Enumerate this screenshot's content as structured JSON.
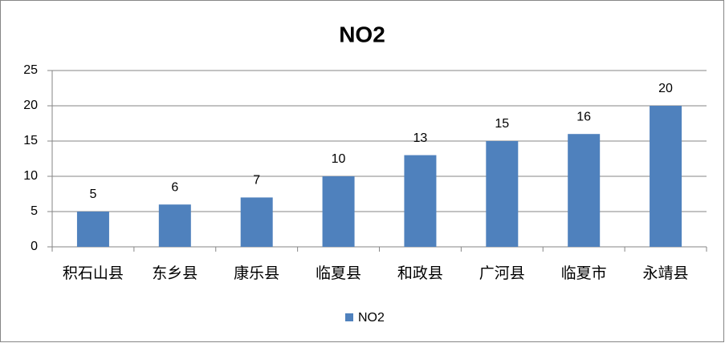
{
  "chart_data": {
    "type": "bar",
    "title": "NO2",
    "categories": [
      "积石山县",
      "东乡县",
      "康乐县",
      "临夏县",
      "和政县",
      "广河县",
      "临夏市",
      "永靖县"
    ],
    "series": [
      {
        "name": "NO2",
        "color": "#4f81bd",
        "values": [
          5,
          6,
          7,
          10,
          13,
          15,
          16,
          20
        ]
      }
    ],
    "ylim": [
      0,
      25
    ],
    "yticks": [
      0,
      5,
      10,
      15,
      20,
      25
    ],
    "grid": true,
    "legend": "bottom"
  }
}
